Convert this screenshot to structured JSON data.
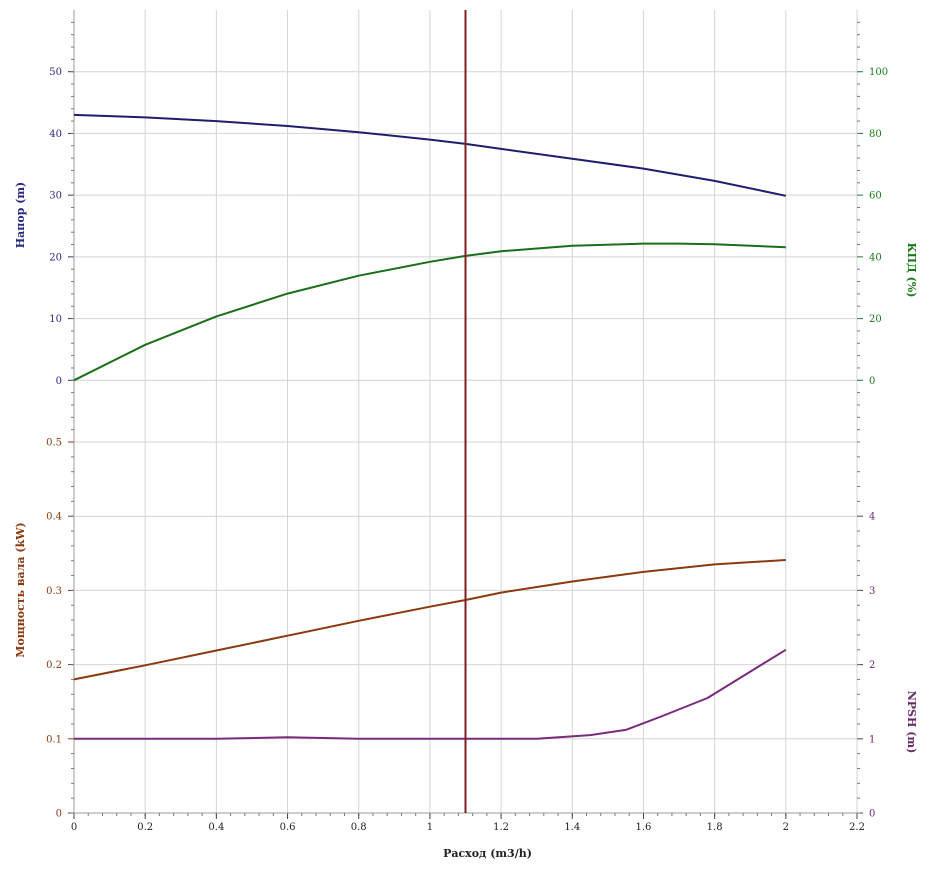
{
  "chart_data": {
    "type": "line",
    "x": {
      "label": "Расход (m3/h)",
      "range": [
        0,
        2.2
      ],
      "ticks": [
        "0",
        "0.2",
        "0.4",
        "0.6",
        "0.8",
        "1",
        "1.2",
        "1.4",
        "1.6",
        "1.8",
        "2",
        "2.2"
      ],
      "tick_values": [
        0,
        0.2,
        0.4,
        0.6,
        0.8,
        1,
        1.2,
        1.4,
        1.6,
        1.8,
        2,
        2.2
      ]
    },
    "operating_point": {
      "x": 1.1,
      "color": "#7f1f1f"
    },
    "panels": [
      {
        "name": "top",
        "grid": true,
        "left_axis": {
          "label": "Напор (m)",
          "color": "#2a2a80",
          "range": [
            -10,
            60
          ],
          "ticks": [
            "0",
            "10",
            "20",
            "30",
            "40",
            "50"
          ],
          "tick_values": [
            0,
            10,
            20,
            30,
            40,
            50
          ]
        },
        "right_axis": {
          "label": "КПД (%)",
          "color": "#1a7a1a",
          "range": [
            -20,
            120
          ],
          "ticks": [
            "0",
            "20",
            "40",
            "60",
            "80",
            "100"
          ],
          "tick_values": [
            0,
            20,
            40,
            60,
            80,
            100
          ]
        },
        "series": [
          {
            "axis": "left",
            "color": "#1e1e6e",
            "x": [
              0,
              0.2,
              0.4,
              0.6,
              0.8,
              1.0,
              1.1,
              1.2,
              1.4,
              1.6,
              1.8,
              2.0
            ],
            "y": [
              43.0,
              42.6,
              42.0,
              41.2,
              40.2,
              39.0,
              38.3,
              37.5,
              35.9,
              34.3,
              32.3,
              29.9
            ]
          },
          {
            "axis": "right",
            "color": "#1a6e1a",
            "x": [
              0,
              0.2,
              0.4,
              0.6,
              0.8,
              1.0,
              1.1,
              1.2,
              1.4,
              1.6,
              1.7,
              1.8,
              2.0
            ],
            "y": [
              0,
              11.5,
              20.7,
              28.1,
              33.9,
              38.4,
              40.3,
              41.8,
              43.6,
              44.3,
              44.3,
              44.1,
              43.1
            ]
          }
        ]
      },
      {
        "name": "bottom",
        "grid": true,
        "left_axis": {
          "label": "Мощность вала (kW)",
          "color": "#8b3a10",
          "range": [
            0,
            0.5
          ],
          "ticks": [
            "0",
            "0.1",
            "0.2",
            "0.3",
            "0.4",
            "0.5"
          ],
          "tick_values": [
            0,
            0.1,
            0.2,
            0.3,
            0.4,
            0.5
          ]
        },
        "right_axis": {
          "label": "NPSH (m)",
          "color": "#6a2a6a",
          "range": [
            0,
            5
          ],
          "ticks": [
            "0",
            "1",
            "2",
            "3",
            "4"
          ],
          "tick_values": [
            0,
            1,
            2,
            3,
            4
          ]
        },
        "series": [
          {
            "axis": "left",
            "color": "#8b3a10",
            "x": [
              0,
              0.2,
              0.4,
              0.6,
              0.8,
              1.0,
              1.1,
              1.2,
              1.4,
              1.6,
              1.8,
              2.0
            ],
            "y": [
              0.18,
              0.199,
              0.219,
              0.239,
              0.259,
              0.278,
              0.287,
              0.297,
              0.312,
              0.325,
              0.335,
              0.341
            ]
          },
          {
            "axis": "right",
            "color": "#7a2a7a",
            "x": [
              0,
              0.2,
              0.4,
              0.6,
              0.8,
              1.0,
              1.1,
              1.3,
              1.45,
              1.55,
              1.65,
              1.78,
              2.0
            ],
            "y": [
              1.0,
              1.0,
              1.0,
              1.02,
              1.0,
              1.0,
              1.0,
              1.0,
              1.05,
              1.12,
              1.3,
              1.55,
              2.2
            ]
          }
        ]
      }
    ]
  }
}
